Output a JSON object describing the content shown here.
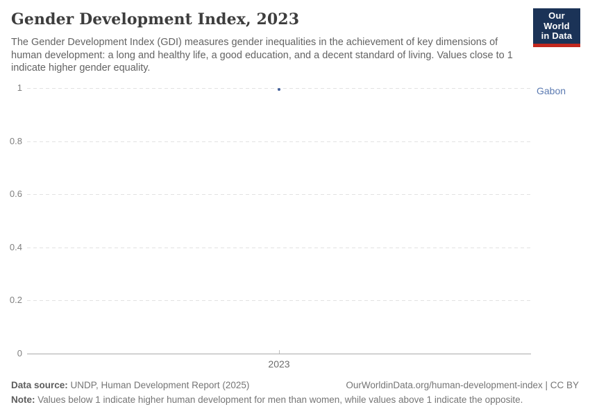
{
  "header": {
    "title": "Gender Development Index, 2023",
    "subtitle": "The Gender Development Index (GDI) measures gender inequalities in the achievement of key dimensions of human development: a long and healthy life, a good education, and a decent standard of living. Values close to 1 indicate higher gender equality.",
    "logo": {
      "line1": "Our World",
      "line2": "in Data"
    }
  },
  "chart_data": {
    "type": "scatter",
    "title": "Gender Development Index, 2023",
    "x": [
      2023
    ],
    "xtick_labels": [
      "2023"
    ],
    "series": [
      {
        "name": "Gabon",
        "values": [
          0.995
        ]
      }
    ],
    "xlabel": "",
    "ylabel": "",
    "ylim": [
      0,
      1
    ],
    "yticks": [
      0,
      0.2,
      0.4,
      0.6,
      0.8,
      1
    ],
    "ytick_labels": [
      "0",
      "0.2",
      "0.4",
      "0.6",
      "0.8",
      "1"
    ],
    "grid": "horizontal-dashed",
    "legend_position": "right-entity-label",
    "entity_label": "Gabon"
  },
  "colors": {
    "series_color": "#44619b",
    "entity_label_color": "#5b7ab1",
    "logo_background": "#1b3357",
    "logo_red_bar": "#c2281e"
  },
  "footer": {
    "datasource_label": "Data source:",
    "datasource_text": " UNDP, Human Development Report (2025)",
    "rights": "OurWorldinData.org/human-development-index | CC BY",
    "note_label": "Note:",
    "note_text": " Values below 1 indicate higher human development for men than women, while values above 1 indicate the opposite."
  }
}
